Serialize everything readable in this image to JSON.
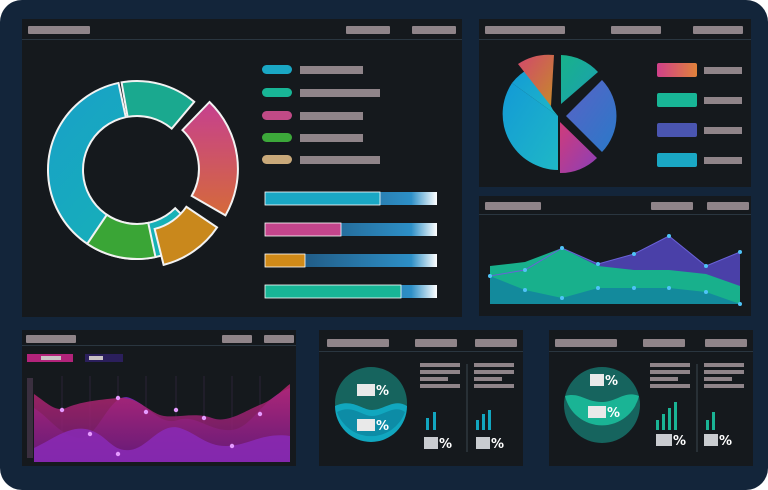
{
  "dashboard": {
    "colors": {
      "frame": "#13253a",
      "panel": "#15191d",
      "placeholder": "#8f8489",
      "cyan": "#1aa7c4",
      "teal": "#18b596",
      "pink": "#c04a86",
      "orange": "#d08a18",
      "green": "#3ca83a",
      "tan": "#c9a97a",
      "violet": "#5a4bb0",
      "magenta": "#b23ab0"
    },
    "donut_legend_icons": [
      "cyan-swatch",
      "teal-swatch",
      "pink-swatch",
      "green-swatch",
      "tan-swatch"
    ],
    "progress_bars": [
      {
        "name": "cyan",
        "fill": 0.67
      },
      {
        "name": "pink",
        "fill": 0.44
      },
      {
        "name": "orange",
        "fill": 0.23
      },
      {
        "name": "teal",
        "fill": 0.79
      }
    ],
    "gauge_cards": [
      {
        "ring_labels": [
          "%",
          "%"
        ],
        "bar_chips": [
          "%",
          "%"
        ]
      },
      {
        "ring_labels": [
          "%",
          "%"
        ],
        "bar_chips": [
          "%",
          "%"
        ]
      }
    ]
  }
}
